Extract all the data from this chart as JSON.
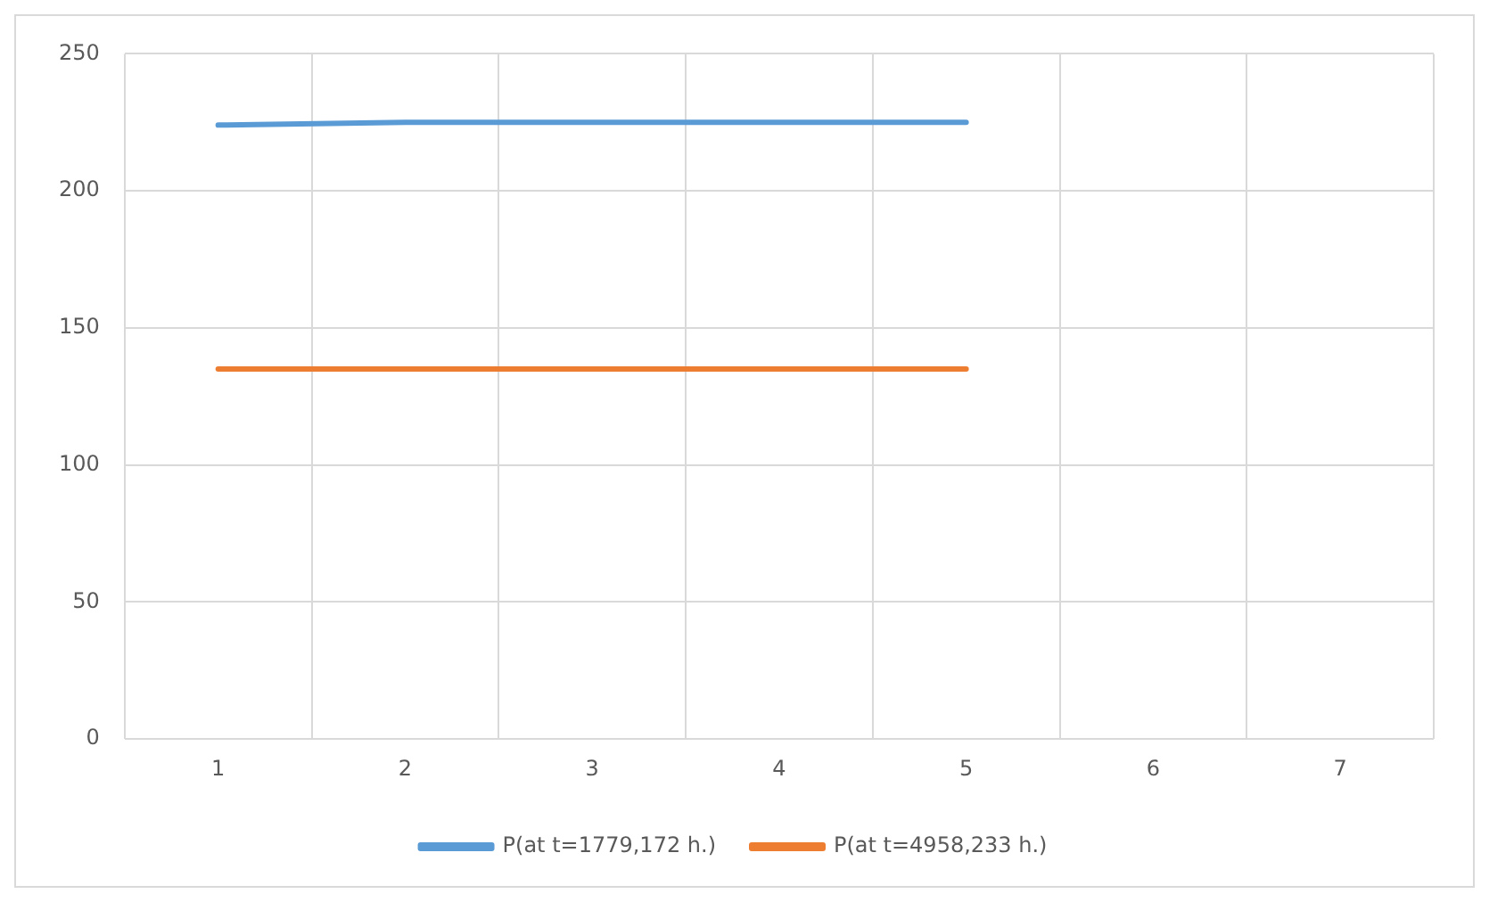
{
  "chart_data": {
    "type": "line",
    "categories": [
      "1",
      "2",
      "3",
      "4",
      "5",
      "6",
      "7"
    ],
    "series": [
      {
        "name": "P(at t=1779,172 h.)",
        "color": "#5b9bd5",
        "values": [
          224,
          225,
          225,
          225,
          225,
          null,
          null
        ]
      },
      {
        "name": "P(at t=4958,233 h.)",
        "color": "#ed7d31",
        "values": [
          135,
          135,
          135,
          135,
          135,
          null,
          null
        ]
      }
    ],
    "ylim": [
      0,
      250
    ],
    "yticks": [
      0,
      50,
      100,
      150,
      200,
      250
    ],
    "grid": true,
    "legend": "bottom",
    "marker": "none",
    "line_style": "solid"
  }
}
